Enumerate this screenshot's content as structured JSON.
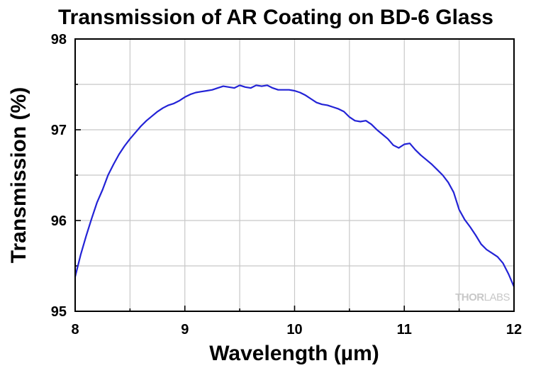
{
  "chart_data": {
    "type": "line",
    "title": "Transmission of AR Coating on BD-6 Glass",
    "xlabel": "Wavelength (µm)",
    "ylabel": "Transmission (%)",
    "xlim": [
      8,
      12
    ],
    "ylim": [
      95,
      98
    ],
    "x_ticks": [
      "8",
      "9",
      "10",
      "11",
      "12"
    ],
    "y_ticks": [
      "95",
      "96",
      "97",
      "98"
    ],
    "grid": true,
    "line_color": "#2323d6",
    "series": [
      {
        "x": [
          8.0,
          8.05,
          8.1,
          8.15,
          8.2,
          8.25,
          8.3,
          8.35,
          8.4,
          8.45,
          8.5,
          8.55,
          8.6,
          8.65,
          8.7,
          8.75,
          8.8,
          8.85,
          8.9,
          8.95,
          9.0,
          9.05,
          9.1,
          9.15,
          9.2,
          9.25,
          9.3,
          9.35,
          9.4,
          9.45,
          9.5,
          9.55,
          9.6,
          9.65,
          9.7,
          9.75,
          9.8,
          9.85,
          9.9,
          9.95,
          10.0,
          10.05,
          10.1,
          10.15,
          10.2,
          10.25,
          10.3,
          10.35,
          10.4,
          10.45,
          10.5,
          10.55,
          10.6,
          10.65,
          10.7,
          10.75,
          10.8,
          10.85,
          10.9,
          10.95,
          11.0,
          11.05,
          11.1,
          11.15,
          11.2,
          11.25,
          11.3,
          11.35,
          11.4,
          11.45,
          11.5,
          11.55,
          11.6,
          11.65,
          11.7,
          11.75,
          11.8,
          11.85,
          11.9,
          11.95,
          12.0
        ],
        "y": [
          95.38,
          95.62,
          95.83,
          96.02,
          96.2,
          96.34,
          96.5,
          96.62,
          96.73,
          96.82,
          96.9,
          96.97,
          97.04,
          97.1,
          97.15,
          97.2,
          97.24,
          97.27,
          97.29,
          97.32,
          97.36,
          97.39,
          97.41,
          97.42,
          97.43,
          97.44,
          97.46,
          97.48,
          97.47,
          97.46,
          97.49,
          97.47,
          97.46,
          97.49,
          97.48,
          97.49,
          97.46,
          97.44,
          97.44,
          97.44,
          97.43,
          97.41,
          97.38,
          97.34,
          97.3,
          97.28,
          97.27,
          97.25,
          97.23,
          97.2,
          97.14,
          97.1,
          97.09,
          97.1,
          97.06,
          97.0,
          96.95,
          96.9,
          96.83,
          96.8,
          96.84,
          96.85,
          96.78,
          96.72,
          96.67,
          96.62,
          96.56,
          96.5,
          96.42,
          96.31,
          96.12,
          96.01,
          95.93,
          95.84,
          95.74,
          95.68,
          95.64,
          95.6,
          95.53,
          95.41,
          95.27
        ]
      }
    ]
  },
  "watermark": {
    "brand_thor": "THOR",
    "brand_labs": "LABS"
  }
}
